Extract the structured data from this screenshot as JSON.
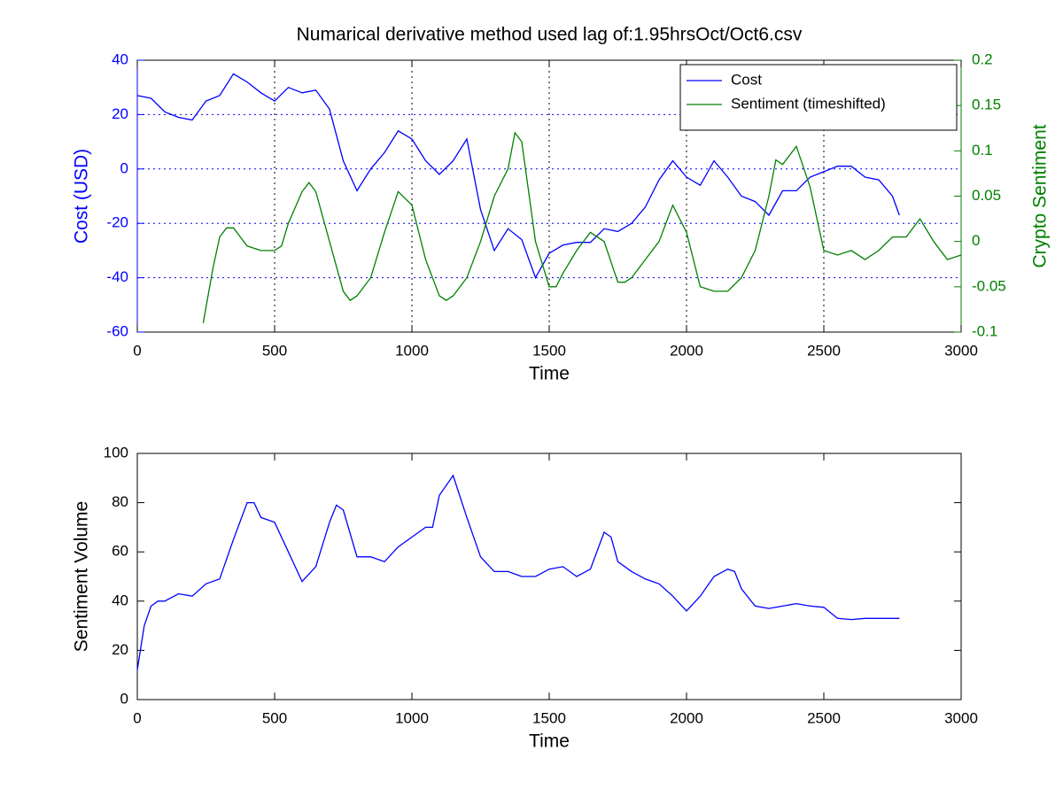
{
  "chart_data": [
    {
      "type": "line",
      "title": "Numarical derivative method used lag of:1.95hrsOct/Oct6.csv",
      "xlabel": "Time",
      "ylabel": "Cost (USD)",
      "y2label": "Crypto Sentiment",
      "ycolor": "#0000ff",
      "y2color": "#008000",
      "xlim": [
        0,
        3000
      ],
      "xticks": [
        0,
        500,
        1000,
        1500,
        2000,
        2500,
        3000
      ],
      "ylim": [
        -60,
        40
      ],
      "yticks": [
        -60,
        -40,
        -20,
        0,
        20,
        40
      ],
      "y2lim": [
        -0.1,
        0.2
      ],
      "y2ticks": [
        -0.1,
        -0.05,
        0,
        0.05,
        0.1,
        0.15,
        0.2
      ],
      "grid": true,
      "legend": "northeast",
      "series": [
        {
          "name": "Cost",
          "color": "#0000ff",
          "x": [
            0,
            50,
            100,
            150,
            200,
            250,
            300,
            350,
            400,
            450,
            500,
            550,
            600,
            650,
            700,
            750,
            800,
            850,
            900,
            950,
            1000,
            1050,
            1100,
            1150,
            1200,
            1250,
            1300,
            1350,
            1400,
            1450,
            1500,
            1550,
            1600,
            1650,
            1700,
            1750,
            1800,
            1850,
            1900,
            1950,
            2000,
            2050,
            2100,
            2150,
            2200,
            2250,
            2300,
            2350,
            2400,
            2450,
            2500,
            2550,
            2600,
            2650,
            2700,
            2750,
            2775
          ],
          "values": [
            27,
            26,
            21,
            19,
            18,
            25,
            27,
            35,
            32,
            28,
            25,
            30,
            28,
            29,
            22,
            3,
            -8,
            0,
            6,
            14,
            11,
            3,
            -2,
            3,
            11,
            -15,
            -30,
            -22,
            -26,
            -40,
            -31,
            -28,
            -27,
            -27,
            -22,
            -23,
            -20,
            -14,
            -4,
            3,
            -3,
            -6,
            3,
            -3,
            -10,
            -12,
            -17,
            -8,
            -8,
            -3,
            -1,
            1,
            1,
            -3,
            -4,
            -10,
            -17
          ]
        },
        {
          "name": "Sentiment (timeshifted)",
          "color": "#008000",
          "axis": "y2",
          "x": [
            240,
            275,
            300,
            325,
            350,
            375,
            400,
            450,
            500,
            525,
            550,
            600,
            625,
            650,
            700,
            750,
            775,
            800,
            850,
            900,
            950,
            1000,
            1050,
            1100,
            1125,
            1150,
            1200,
            1250,
            1300,
            1350,
            1375,
            1400,
            1450,
            1500,
            1525,
            1550,
            1600,
            1650,
            1700,
            1750,
            1775,
            1800,
            1850,
            1900,
            1950,
            2000,
            2050,
            2100,
            2150,
            2200,
            2250,
            2300,
            2325,
            2350,
            2400,
            2450,
            2500,
            2550,
            2600,
            2650,
            2700,
            2750,
            2800,
            2850,
            2900,
            2950,
            3000
          ],
          "values": [
            -0.09,
            -0.03,
            0.005,
            0.015,
            0.015,
            0.005,
            -0.005,
            -0.01,
            -0.01,
            -0.005,
            0.02,
            0.055,
            0.065,
            0.055,
            0.0,
            -0.055,
            -0.065,
            -0.06,
            -0.04,
            0.01,
            0.055,
            0.04,
            -0.02,
            -0.06,
            -0.065,
            -0.06,
            -0.04,
            0.0,
            0.05,
            0.08,
            0.12,
            0.11,
            0.0,
            -0.05,
            -0.05,
            -0.035,
            -0.01,
            0.01,
            0.0,
            -0.045,
            -0.045,
            -0.04,
            -0.02,
            0.0,
            0.04,
            0.01,
            -0.05,
            -0.055,
            -0.055,
            -0.04,
            -0.01,
            0.05,
            0.09,
            0.085,
            0.105,
            0.06,
            -0.01,
            -0.015,
            -0.01,
            -0.02,
            -0.01,
            0.005,
            0.005,
            0.025,
            0.0,
            -0.02,
            -0.015
          ]
        }
      ]
    },
    {
      "type": "line",
      "xlabel": "Time",
      "ylabel": "Sentiment Volume",
      "xlim": [
        0,
        3000
      ],
      "xticks": [
        0,
        500,
        1000,
        1500,
        2000,
        2500,
        3000
      ],
      "ylim": [
        0,
        100
      ],
      "yticks": [
        0,
        20,
        40,
        60,
        80,
        100
      ],
      "series": [
        {
          "color": "#0000ff",
          "x": [
            0,
            25,
            50,
            75,
            100,
            150,
            200,
            250,
            300,
            350,
            400,
            425,
            450,
            500,
            550,
            600,
            650,
            700,
            725,
            750,
            800,
            850,
            900,
            950,
            1000,
            1050,
            1075,
            1100,
            1150,
            1200,
            1250,
            1300,
            1350,
            1400,
            1450,
            1500,
            1550,
            1600,
            1650,
            1700,
            1725,
            1750,
            1800,
            1850,
            1900,
            1950,
            2000,
            2050,
            2100,
            2150,
            2175,
            2200,
            2250,
            2300,
            2350,
            2400,
            2450,
            2500,
            2550,
            2600,
            2650,
            2700,
            2750,
            2775
          ],
          "values": [
            12,
            30,
            38,
            40,
            40,
            43,
            42,
            47,
            49,
            65,
            80,
            80,
            74,
            72,
            60,
            48,
            54,
            72,
            79,
            77,
            58,
            58,
            56,
            62,
            66,
            70,
            70,
            83,
            91,
            74,
            58,
            52,
            52,
            50,
            50,
            53,
            54,
            50,
            53,
            68,
            66,
            56,
            52,
            49,
            47,
            42,
            36,
            42,
            50,
            53,
            52,
            45,
            38,
            37,
            38,
            39,
            38,
            37.5,
            33,
            32.5,
            33,
            33,
            33,
            33
          ]
        }
      ]
    }
  ]
}
